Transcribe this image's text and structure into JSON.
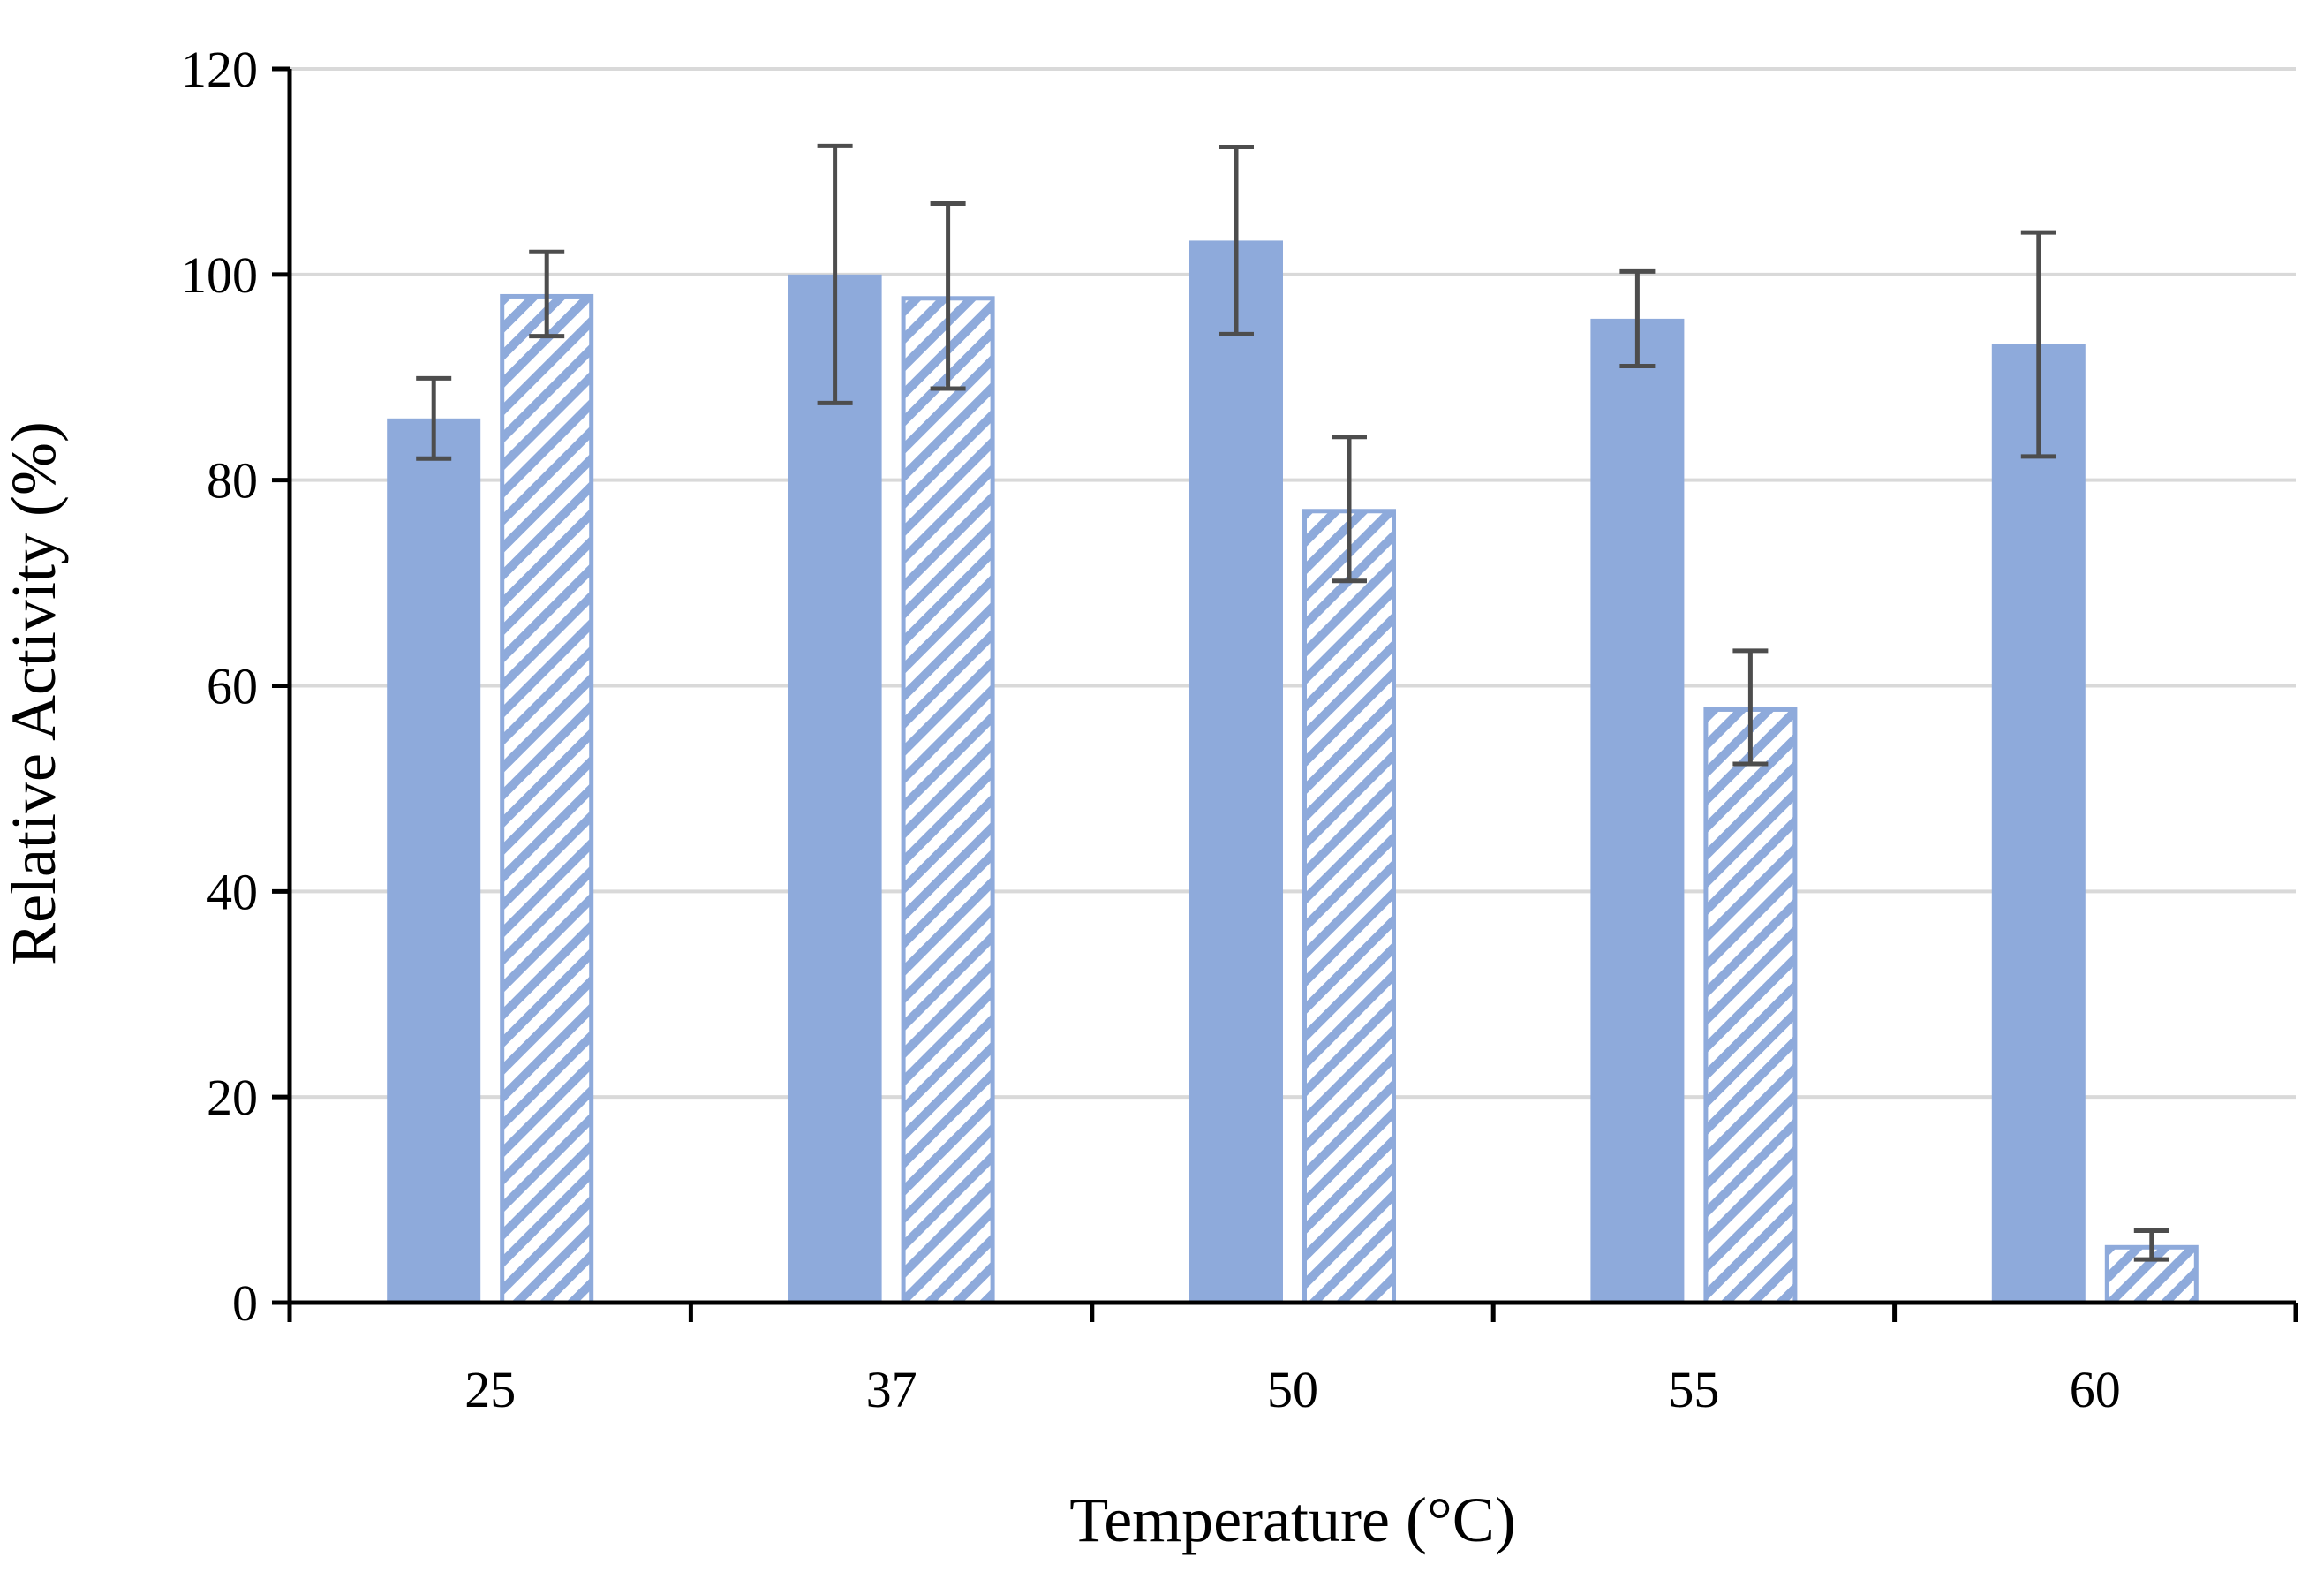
{
  "chart_data": {
    "type": "bar",
    "title": "",
    "xlabel": "Temperature (°C)",
    "ylabel": "Relative Activity (%)",
    "categories": [
      "25",
      "37",
      "50",
      "55",
      "60"
    ],
    "ylim": [
      0,
      120
    ],
    "yticks": [
      0,
      20,
      40,
      60,
      80,
      100,
      120
    ],
    "grid": true,
    "legend": "none",
    "series": [
      {
        "name": "solid",
        "style": "solid",
        "color": "#8eaadb",
        "values": [
          86,
          100,
          103.3,
          95.7,
          93.2
        ],
        "error": [
          3.9,
          12.5,
          9.1,
          4.6,
          10.9
        ]
      },
      {
        "name": "hatched",
        "style": "hatched",
        "color": "#8eaadb",
        "values": [
          98.1,
          97.9,
          77.2,
          57.9,
          5.6
        ],
        "error": [
          4.1,
          9.0,
          7.0,
          5.5,
          1.4
        ]
      }
    ]
  }
}
